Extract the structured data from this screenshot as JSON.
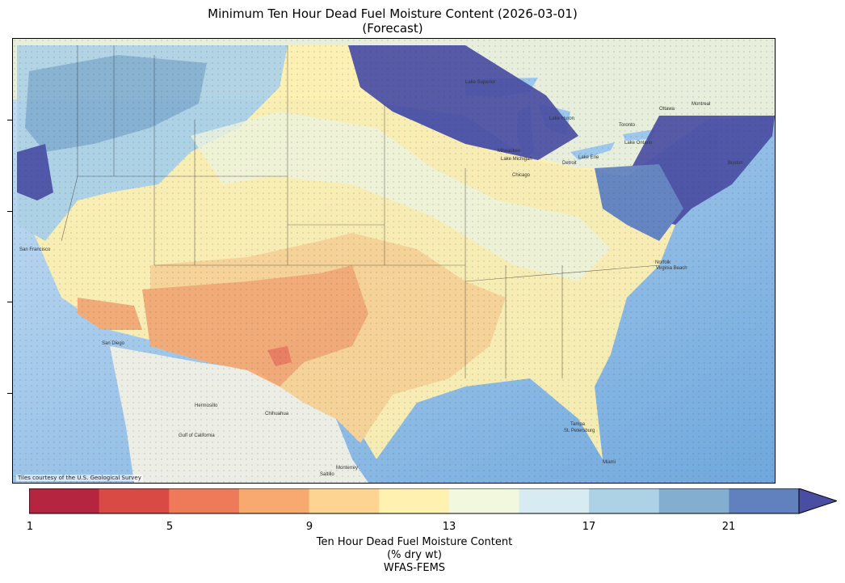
{
  "title_line1": "Minimum Ten Hour Dead Fuel Moisture Content (2026-03-01)",
  "title_line2": "(Forecast)",
  "attribution": "Tiles courtesy of the U.S. Geological Survey",
  "map_labels": {
    "san_francisco": "San Francisco",
    "hermosillo": "Hermosillo",
    "chihuahua": "Chihuahua",
    "monterrey": "Monterrey",
    "saltillo": "Saltillo",
    "gulf_california": "Gulf of California",
    "ottawa": "Ottawa",
    "montreal": "Montreal",
    "toronto": "Toronto",
    "lake_superior": "Lake Superior",
    "lake_michigan": "Lake Michigan",
    "lake_huron": "Lake Huron",
    "lake_erie": "Lake Erie",
    "lake_ontario": "Lake Ontario",
    "milwaukee": "Milwaukee",
    "chicago": "Chicago",
    "detroit": "Detroit",
    "boston": "Boston",
    "norfolk": "Norfolk",
    "virginia_beach": "Virginia Beach",
    "tampa": "Tampa",
    "st_petersburg": "St. Petersburg",
    "miami": "Miami",
    "san_diego": "San Diego"
  },
  "colorbar": {
    "tick_labels": [
      "1",
      "5",
      "9",
      "13",
      "17",
      "21"
    ],
    "colors": [
      "#b5253f",
      "#d94a45",
      "#ef7a5a",
      "#f8a970",
      "#fdd492",
      "#fff1b0",
      "#f2f8de",
      "#d6ecf2",
      "#aed2e5",
      "#82aed0",
      "#6181be",
      "#4a4ea3"
    ],
    "caption_line1": "Ten Hour Dead Fuel Moisture Content",
    "caption_line2": "(% dry wt)",
    "caption_line3": "WFAS-FEMS",
    "extend": "max"
  }
}
